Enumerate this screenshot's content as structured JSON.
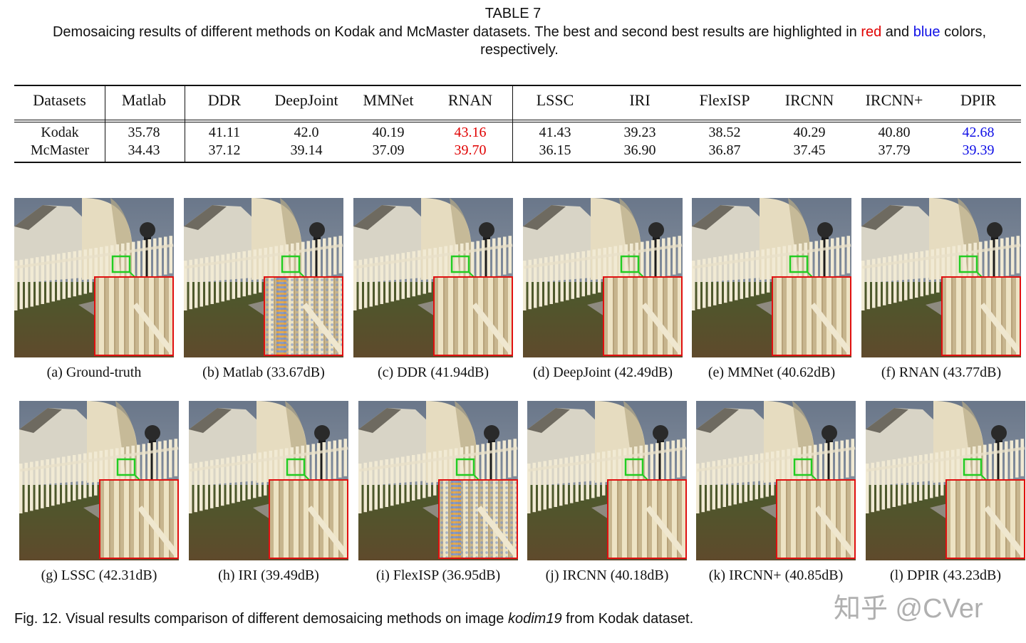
{
  "table_title": "TABLE 7",
  "table_caption": {
    "before": "Demosaicing results of different methods on Kodak and McMaster datasets. The best and second best results are highlighted in ",
    "red_word": "red",
    "middle": " and ",
    "blue_word": "blue",
    "after": " colors, respectively."
  },
  "colors": {
    "best": "#e00000",
    "second_best": "#1010e6",
    "zoom_border": "#e01010",
    "roi_box": "#22cc22"
  },
  "table": {
    "header_label": "Datasets",
    "methods": [
      "Matlab",
      "DDR",
      "DeepJoint",
      "MMNet",
      "RNAN",
      "LSSC",
      "IRI",
      "FlexISP",
      "IRCNN",
      "IRCNN+",
      "DPIR"
    ],
    "rows": [
      {
        "dataset": "Kodak",
        "values": [
          "35.78",
          "41.11",
          "42.0",
          "40.19",
          "43.16",
          "41.43",
          "39.23",
          "38.52",
          "40.29",
          "40.80",
          "42.68"
        ]
      },
      {
        "dataset": "McMaster",
        "values": [
          "34.43",
          "37.12",
          "39.14",
          "37.09",
          "39.70",
          "36.15",
          "36.90",
          "36.87",
          "37.45",
          "37.79",
          "39.39"
        ]
      }
    ],
    "best_method": "RNAN",
    "second_best_method": "DPIR"
  },
  "panels": [
    {
      "label": "(a)  Ground-truth",
      "artifact": false
    },
    {
      "label": "(b)  Matlab (33.67dB)",
      "artifact": true
    },
    {
      "label": "(c)  DDR (41.94dB)",
      "artifact": false
    },
    {
      "label": "(d)  DeepJoint (42.49dB)",
      "artifact": false
    },
    {
      "label": "(e)  MMNet (40.62dB)",
      "artifact": false
    },
    {
      "label": "(f)  RNAN (43.77dB)",
      "artifact": false
    },
    {
      "label": "(g)  LSSC (42.31dB)",
      "artifact": false
    },
    {
      "label": "(h)  IRI (39.49dB)",
      "artifact": false
    },
    {
      "label": "(i)  FlexISP (36.95dB)",
      "artifact": true
    },
    {
      "label": "(j)  IRCNN (40.18dB)",
      "artifact": false
    },
    {
      "label": "(k)  IRCNN+ (40.85dB)",
      "artifact": false
    },
    {
      "label": "(l)  DPIR (43.23dB)",
      "artifact": false
    }
  ],
  "figure_caption": {
    "before": "Fig. 12. Visual results comparison of different demosaicing methods on image ",
    "image_name": "kodim19",
    "after": " from Kodak dataset."
  },
  "watermark": "知乎 @CVer"
}
